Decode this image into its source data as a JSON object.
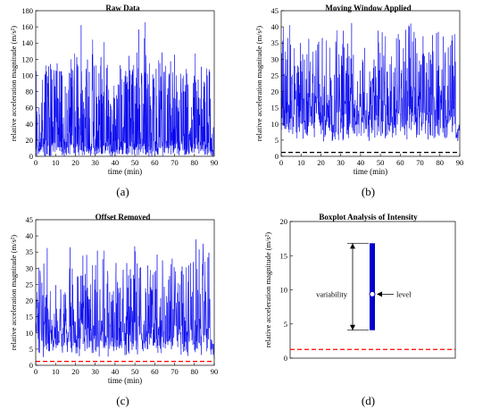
{
  "chart_data": [
    {
      "id": "a",
      "type": "line",
      "title": "Raw Data",
      "xlabel": "time (min)",
      "ylabel": "relative acceleration magnitude (m/s²)",
      "xlim": [
        0,
        90
      ],
      "ylim": [
        0,
        180
      ],
      "xticks": [
        "0",
        "10",
        "20",
        "30",
        "40",
        "50",
        "60",
        "70",
        "80",
        "90"
      ],
      "yticks": [
        "0",
        "20",
        "40",
        "60",
        "80",
        "100",
        "120",
        "140",
        "160",
        "180"
      ],
      "series_color": "#0000ee",
      "envelope": {
        "x": [
          0,
          5,
          10,
          15,
          20,
          22,
          25,
          27,
          30,
          35,
          40,
          45,
          50,
          55,
          60,
          65,
          70,
          75,
          80,
          83,
          85,
          88,
          90
        ],
        "upper": [
          125,
          120,
          118,
          115,
          120,
          110,
          108,
          100,
          115,
          120,
          118,
          122,
          128,
          120,
          120,
          122,
          125,
          118,
          122,
          150,
          115,
          118,
          40
        ],
        "dense": [
          15,
          15,
          15,
          14,
          15,
          12,
          10,
          8,
          14,
          15,
          15,
          15,
          15,
          15,
          15,
          15,
          15,
          15,
          15,
          15,
          15,
          12,
          5
        ]
      },
      "spikes_max": [
        140,
        158,
        176,
        150
      ]
    },
    {
      "id": "b",
      "type": "line",
      "title": "Moving Window Applied",
      "xlabel": "time (min)",
      "ylabel": "relative acceleration magnitude (m/s²)",
      "xlim": [
        0,
        90
      ],
      "ylim": [
        0,
        45
      ],
      "xticks": [
        "0",
        "10",
        "20",
        "30",
        "40",
        "50",
        "60",
        "70",
        "80",
        "90"
      ],
      "yticks": [
        "0",
        "5",
        "10",
        "15",
        "20",
        "25",
        "30",
        "35",
        "40",
        "45"
      ],
      "series_color": "#0000ee",
      "baseline": 1.2,
      "baseline_color": "#000000"
    },
    {
      "id": "c",
      "type": "line",
      "title": "Offset Removed",
      "xlabel": "time (min)",
      "ylabel": "relative acceleration magnitude (m/s²)",
      "xlim": [
        0,
        90
      ],
      "ylim": [
        0,
        45
      ],
      "xticks": [
        "0",
        "10",
        "20",
        "30",
        "40",
        "50",
        "60",
        "70",
        "80",
        "90"
      ],
      "yticks": [
        "0",
        "5",
        "10",
        "15",
        "20",
        "25",
        "30",
        "35",
        "40",
        "45"
      ],
      "series_color": "#0000ee",
      "baseline": 1.2,
      "baseline_color": "#ff0000"
    },
    {
      "id": "d",
      "type": "boxplot",
      "title": "Boxplot Analysis of Intensity",
      "ylabel": "relative acceleration magnitude (m/s²)",
      "ylim": [
        0,
        22
      ],
      "yticks": [
        "0",
        "5",
        "10",
        "15",
        "20"
      ],
      "box_low": 4.5,
      "box_high": 18.5,
      "median": 10.3,
      "box_color": "#0000cc",
      "baseline": 1.4,
      "baseline_color": "#ff0000",
      "annotations": {
        "variability": "variability",
        "level": "level"
      }
    }
  ],
  "captions": {
    "a": "(a)",
    "b": "(b)",
    "c": "(c)",
    "d": "(d)"
  }
}
